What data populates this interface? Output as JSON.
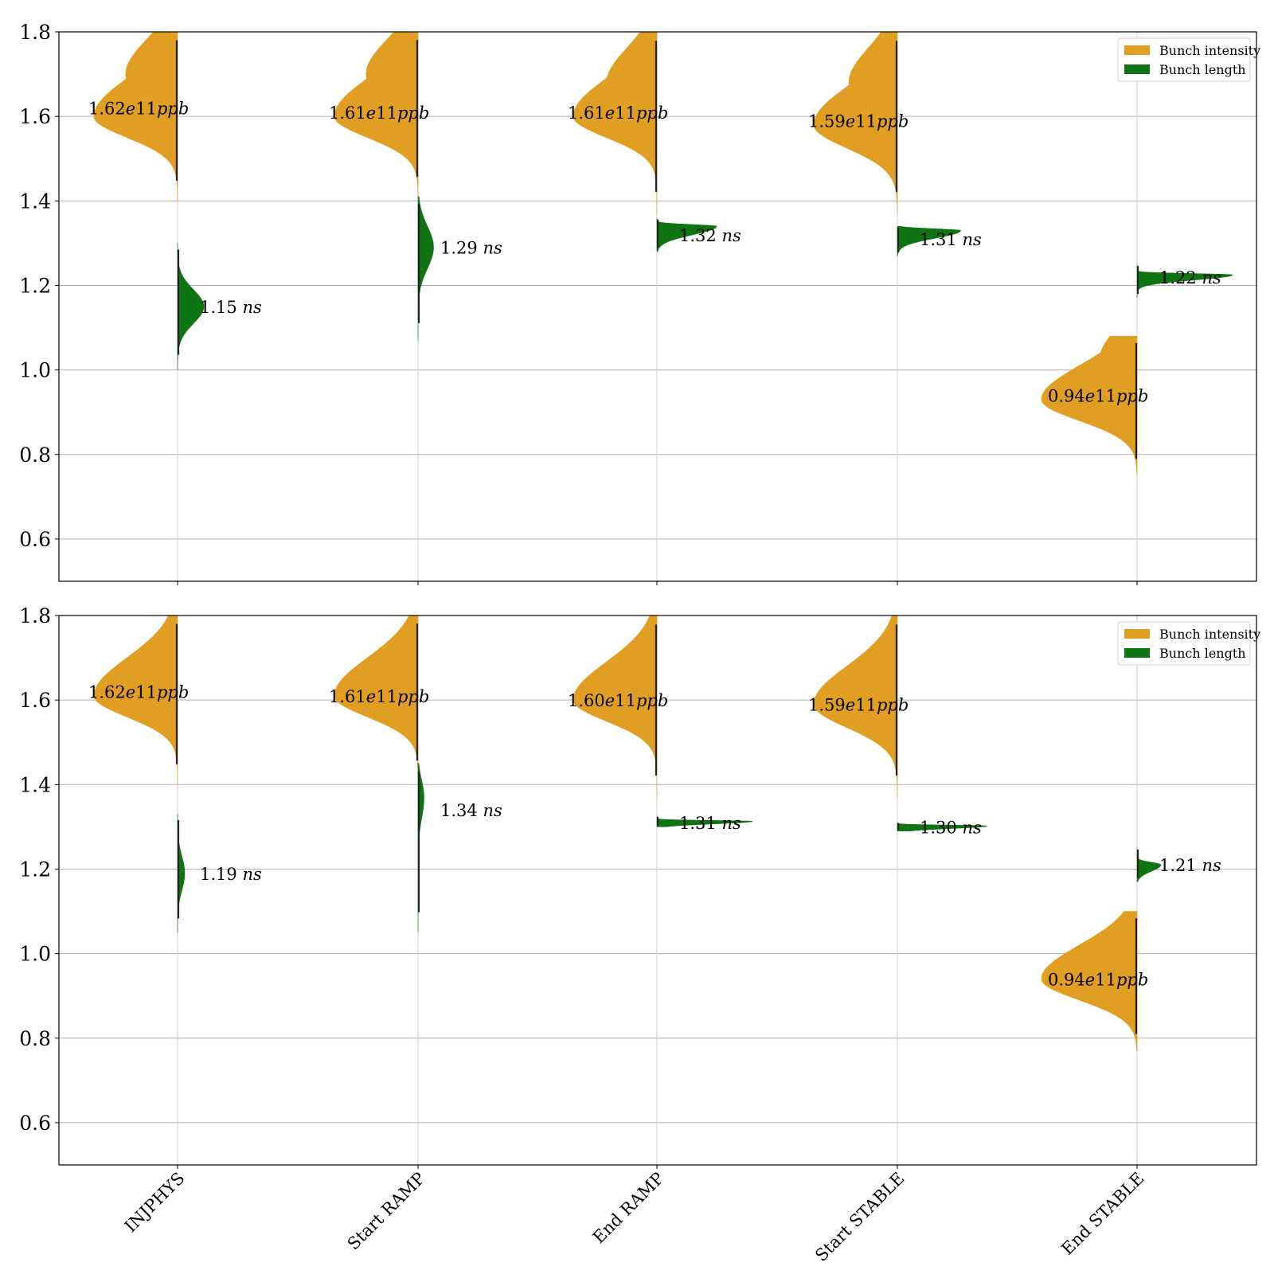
{
  "colors": {
    "intensity": "#E09F22",
    "length": "#0F7412",
    "grid": "#b0b0b0",
    "frame": "#000000",
    "median_line": "#222222"
  },
  "chart_data": [
    {
      "type": "violin",
      "id": "top",
      "ylim": [
        0.5,
        1.8
      ],
      "yticks": [
        "0.6",
        "0.8",
        "1.0",
        "1.2",
        "1.4",
        "1.6",
        "1.8"
      ],
      "yticks_values": [
        0.6,
        0.8,
        1.0,
        1.2,
        1.4,
        1.6,
        1.8
      ],
      "grid": "horizontal",
      "legend": {
        "position": "top-right",
        "items": [
          {
            "label": "Bunch intensity",
            "color": "#E09F22"
          },
          {
            "label": "Bunch length",
            "color": "#0F7412"
          }
        ]
      },
      "categories": [
        "INJPHYS",
        "Start RAMP",
        "End RAMP",
        "Start STABLE",
        "End STABLE"
      ],
      "series": [
        {
          "name": "Bunch intensity",
          "side": "left",
          "violins": [
            {
              "median": 1.62,
              "mode": 1.6,
              "range": [
                1.4,
                1.8
              ],
              "shoulder": [
                1.7,
                0.62
              ],
              "width": 0.7,
              "sigma_lo": 0.05,
              "sigma_hi": 0.09,
              "num": "1.62",
              "unit": "e11ppb"
            },
            {
              "median": 1.61,
              "mode": 1.6,
              "range": [
                1.41,
                1.8
              ],
              "shoulder": [
                1.7,
                0.62
              ],
              "width": 0.7,
              "sigma_lo": 0.05,
              "sigma_hi": 0.09,
              "num": "1.61",
              "unit": "e11ppb"
            },
            {
              "median": 1.61,
              "mode": 1.6,
              "range": [
                1.37,
                1.8
              ],
              "shoulder": [
                1.68,
                0.6
              ],
              "width": 0.7,
              "sigma_lo": 0.05,
              "sigma_hi": 0.09,
              "num": "1.61",
              "unit": "e11ppb"
            },
            {
              "median": 1.59,
              "mode": 1.58,
              "range": [
                1.37,
                1.8
              ],
              "shoulder": [
                1.68,
                0.58
              ],
              "width": 0.7,
              "sigma_lo": 0.055,
              "sigma_hi": 0.09,
              "num": "1.59",
              "unit": "e11ppb"
            },
            {
              "median": 0.94,
              "mode": 0.93,
              "range": [
                0.75,
                1.08
              ],
              "shoulder": [
                1.02,
                0.4
              ],
              "width": 0.8,
              "sigma_lo": 0.05,
              "sigma_hi": 0.08,
              "num": "0.94",
              "unit": "e11ppb"
            }
          ]
        },
        {
          "name": "Bunch length",
          "side": "right",
          "violins": [
            {
              "median": 1.15,
              "mode": 1.15,
              "range": [
                1.0,
                1.3
              ],
              "width": 0.22,
              "sigma_lo": 0.04,
              "sigma_hi": 0.04,
              "num": "1.15",
              "unit": "ns"
            },
            {
              "median": 1.29,
              "mode": 1.29,
              "range": [
                1.07,
                1.41
              ],
              "width": 0.13,
              "sigma_lo": 0.05,
              "sigma_hi": 0.05,
              "num": "1.29",
              "unit": "ns"
            },
            {
              "median": 1.32,
              "mode": 1.34,
              "range": [
                1.28,
                1.36
              ],
              "width": 0.5,
              "sigma_lo": 0.02,
              "sigma_hi": 0.004,
              "num": "1.32",
              "unit": "ns"
            },
            {
              "median": 1.31,
              "mode": 1.33,
              "range": [
                1.27,
                1.34
              ],
              "width": 0.53,
              "sigma_lo": 0.018,
              "sigma_hi": 0.004,
              "num": "1.31",
              "unit": "ns"
            },
            {
              "median": 1.22,
              "mode": 1.225,
              "range": [
                1.17,
                1.25
              ],
              "width": 0.8,
              "sigma_lo": 0.012,
              "sigma_hi": 0.003,
              "num": "1.22",
              "unit": "ns"
            }
          ]
        }
      ]
    },
    {
      "type": "violin",
      "id": "bottom",
      "ylim": [
        0.5,
        1.8
      ],
      "yticks": [
        "0.6",
        "0.8",
        "1.0",
        "1.2",
        "1.4",
        "1.6",
        "1.8"
      ],
      "yticks_values": [
        0.6,
        0.8,
        1.0,
        1.2,
        1.4,
        1.6,
        1.8
      ],
      "grid": "horizontal",
      "legend": {
        "position": "top-right",
        "items": [
          {
            "label": "Bunch intensity",
            "color": "#E09F22"
          },
          {
            "label": "Bunch length",
            "color": "#0F7412"
          }
        ]
      },
      "categories": [
        "INJPHYS",
        "Start RAMP",
        "End RAMP",
        "Start STABLE",
        "End STABLE"
      ],
      "xtick_labels": [
        "INJPHYS",
        "Start RAMP",
        "End RAMP",
        "Start STABLE",
        "End STABLE"
      ],
      "series": [
        {
          "name": "Bunch intensity",
          "side": "left",
          "violins": [
            {
              "median": 1.62,
              "mode": 1.61,
              "range": [
                1.4,
                1.8
              ],
              "width": 0.7,
              "sigma_lo": 0.05,
              "sigma_hi": 0.09,
              "num": "1.62",
              "unit": "e11ppb"
            },
            {
              "median": 1.61,
              "mode": 1.61,
              "range": [
                1.41,
                1.8
              ],
              "width": 0.7,
              "sigma_lo": 0.05,
              "sigma_hi": 0.09,
              "num": "1.61",
              "unit": "e11ppb"
            },
            {
              "median": 1.6,
              "mode": 1.6,
              "range": [
                1.37,
                1.8
              ],
              "width": 0.7,
              "sigma_lo": 0.05,
              "sigma_hi": 0.09,
              "num": "1.60",
              "unit": "e11ppb"
            },
            {
              "median": 1.59,
              "mode": 1.59,
              "range": [
                1.37,
                1.8
              ],
              "width": 0.7,
              "sigma_lo": 0.055,
              "sigma_hi": 0.09,
              "num": "1.59",
              "unit": "e11ppb"
            },
            {
              "median": 0.94,
              "mode": 0.94,
              "range": [
                0.77,
                1.1
              ],
              "width": 0.8,
              "sigma_lo": 0.05,
              "sigma_hi": 0.08,
              "num": "0.94",
              "unit": "e11ppb"
            }
          ]
        },
        {
          "name": "Bunch length",
          "side": "right",
          "violins": [
            {
              "median": 1.19,
              "mode": 1.19,
              "range": [
                1.05,
                1.33
              ],
              "width": 0.06,
              "sigma_lo": 0.04,
              "sigma_hi": 0.04,
              "num": "1.19",
              "unit": "ns"
            },
            {
              "median": 1.34,
              "mode": 1.37,
              "range": [
                1.05,
                1.45
              ],
              "width": 0.05,
              "sigma_lo": 0.05,
              "sigma_hi": 0.04,
              "num": "1.34",
              "unit": "ns"
            },
            {
              "median": 1.31,
              "mode": 1.313,
              "range": [
                1.3,
                1.325
              ],
              "width": 0.8,
              "sigma_lo": 0.006,
              "sigma_hi": 0.002,
              "num": "1.31",
              "unit": "ns"
            },
            {
              "median": 1.3,
              "mode": 1.302,
              "range": [
                1.29,
                1.31
              ],
              "width": 0.75,
              "sigma_lo": 0.006,
              "sigma_hi": 0.002,
              "num": "1.30",
              "unit": "ns"
            },
            {
              "median": 1.21,
              "mode": 1.21,
              "range": [
                1.17,
                1.25
              ],
              "width": 0.2,
              "sigma_lo": 0.015,
              "sigma_hi": 0.006,
              "num": "1.21",
              "unit": "ns"
            }
          ]
        }
      ]
    }
  ]
}
